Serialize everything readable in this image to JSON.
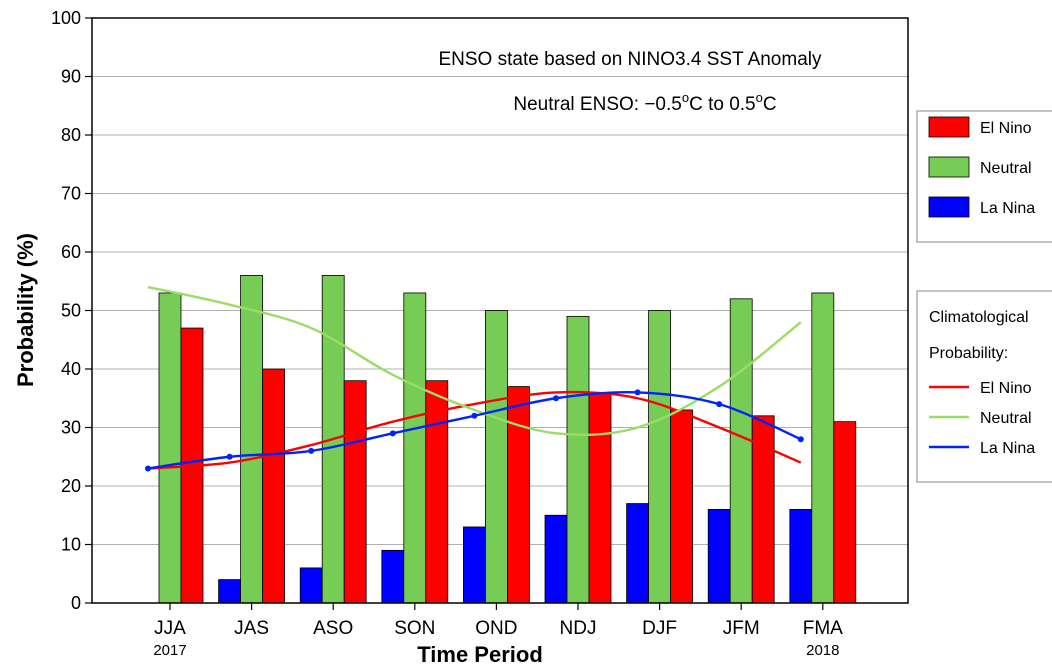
{
  "chart_data": {
    "type": "bar",
    "ylabel": "Probability (%)",
    "xlabel": "Time Period",
    "ylim": [
      0,
      100
    ],
    "yticks": [
      0,
      10,
      20,
      30,
      40,
      50,
      60,
      70,
      80,
      90,
      100
    ],
    "grid": true,
    "categories": [
      "JJA",
      "JAS",
      "ASO",
      "SON",
      "OND",
      "NDJ",
      "DJF",
      "JFM",
      "FMA"
    ],
    "category_sublabels": {
      "first": "2017",
      "last": "2018"
    },
    "annotations": {
      "line1": "ENSO state based on NINO3.4 SST Anomaly",
      "line2_prefix": "Neutral ENSO: −0.5",
      "line2_deg1": "o",
      "line2_mid": "C to 0.5",
      "line2_deg2": "o",
      "line2_suffix": "C"
    },
    "series": [
      {
        "name": "La Nina",
        "color": "#0000ff",
        "values": [
          0,
          4,
          6,
          9,
          13,
          15,
          17,
          16,
          16
        ]
      },
      {
        "name": "Neutral",
        "color": "#77cc55",
        "values": [
          53,
          56,
          56,
          53,
          50,
          49,
          50,
          52,
          53
        ]
      },
      {
        "name": "El Nino",
        "color": "#ff0000",
        "values": [
          47,
          40,
          38,
          38,
          37,
          36,
          33,
          32,
          31
        ]
      }
    ],
    "climatology": [
      {
        "name": "El Nino",
        "color": "#ff0000",
        "values": [
          23,
          24,
          27,
          31,
          34,
          36,
          35,
          30,
          24
        ],
        "markers": false
      },
      {
        "name": "Neutral",
        "color": "#99dd66",
        "values": [
          54,
          51,
          47,
          39,
          33,
          29,
          30,
          37,
          48
        ],
        "markers": false
      },
      {
        "name": "La Nina",
        "color": "#0022ff",
        "values": [
          23,
          25,
          26,
          29,
          32,
          35,
          36,
          34,
          28
        ],
        "markers": true
      }
    ],
    "legend": {
      "placement": "right",
      "bars_title": "",
      "lines_title_1": "Climatological",
      "lines_title_2": "Probability:",
      "bar_order": [
        "El Nino",
        "Neutral",
        "La Nina"
      ],
      "line_order": [
        "El Nino",
        "Neutral",
        "La Nina"
      ]
    }
  }
}
